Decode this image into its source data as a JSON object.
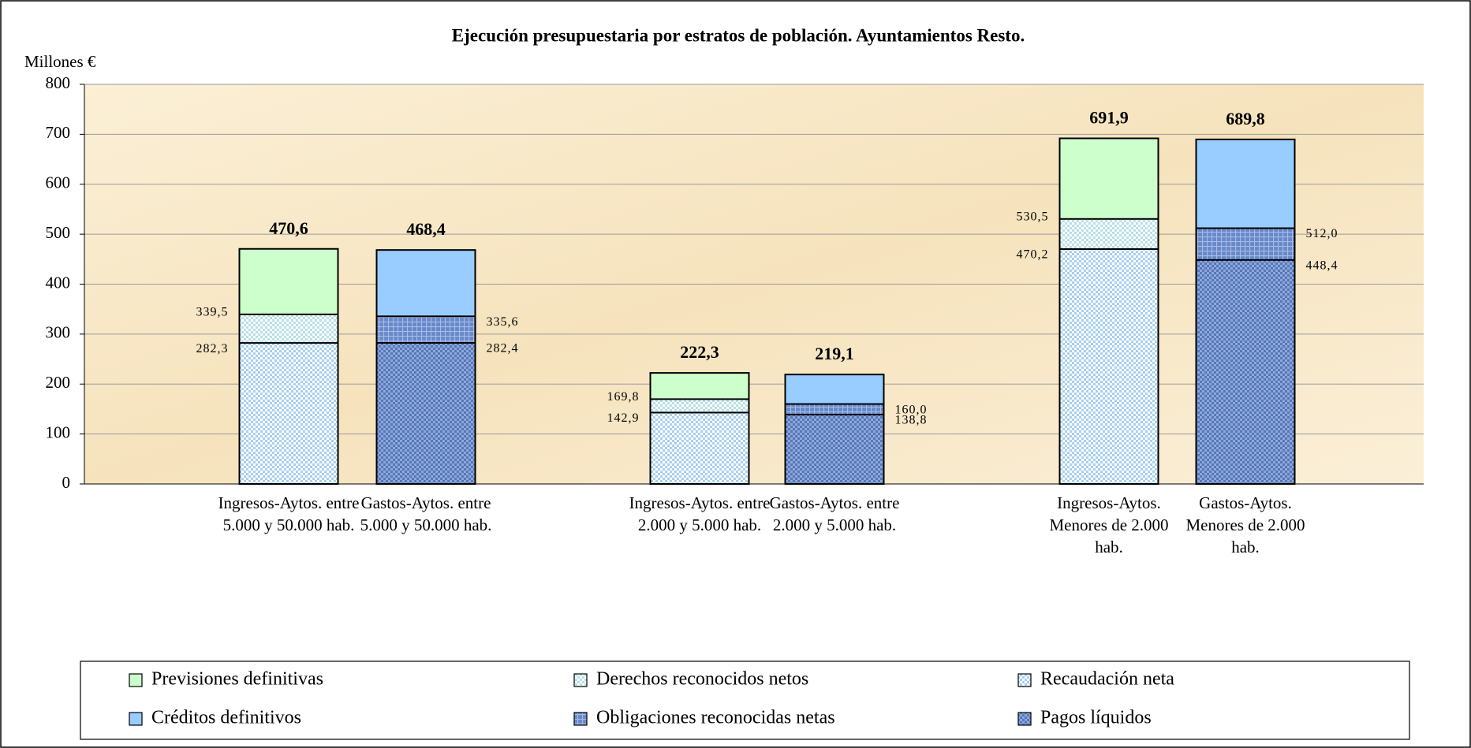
{
  "chart_data": {
    "type": "bar",
    "title": "Ejecución presupuestaria por estratos de población. Ayuntamientos Resto.",
    "y_label": "Millones €",
    "categories": [
      "Ingresos-Aytos. entre 5.000 y 50.000 hab.",
      "Gastos-Aytos. entre 5.000 y 50.000 hab.",
      "Ingresos-Aytos. entre 2.000 y 5.000 hab.",
      "Gastos-Aytos. entre 2.000 y 5.000 hab.",
      "Ingresos-Aytos. Menores de 2.000 hab.",
      "Gastos-Aytos. Menores de 2.000 hab."
    ],
    "series": [
      {
        "name": "Previsiones definitivas",
        "color": "#ccffcc",
        "values": [
          470.6,
          null,
          222.3,
          null,
          691.9,
          null
        ],
        "value_labels": [
          "470,6",
          null,
          "222,3",
          null,
          "691,9",
          null
        ]
      },
      {
        "name": "Derechos reconocidos netos",
        "color": "#b8e0e8",
        "values": [
          339.5,
          null,
          169.8,
          null,
          530.5,
          null
        ],
        "value_labels": [
          "339,5",
          null,
          "169,8",
          null,
          "530,5",
          null
        ]
      },
      {
        "name": "Recaudación neta",
        "color": "#a8d0f0",
        "values": [
          282.3,
          null,
          142.9,
          null,
          470.2,
          null
        ],
        "value_labels": [
          "282,3",
          null,
          "142,9",
          null,
          "470,2",
          null
        ]
      },
      {
        "name": "Créditos definitivos",
        "color": "#99ccff",
        "values": [
          null,
          468.4,
          null,
          219.1,
          null,
          689.8
        ],
        "value_labels": [
          null,
          "468,4",
          null,
          "219,1",
          null,
          "689,8"
        ]
      },
      {
        "name": "Obligaciones reconocidas netas",
        "color": "#6688cc",
        "values": [
          null,
          335.6,
          null,
          160.0,
          null,
          512.0
        ],
        "value_labels": [
          null,
          "335,6",
          null,
          "160,0",
          null,
          "512,0"
        ]
      },
      {
        "name": "Pagos líquidos",
        "color": "#5577bb",
        "values": [
          null,
          282.4,
          null,
          138.8,
          null,
          448.4
        ],
        "value_labels": [
          null,
          "282,4",
          null,
          "138,8",
          null,
          "448,4"
        ]
      }
    ],
    "ylim": [
      0,
      800
    ],
    "yticks": [
      0,
      100,
      200,
      300,
      400,
      500,
      600,
      700,
      800
    ],
    "grid": true
  }
}
